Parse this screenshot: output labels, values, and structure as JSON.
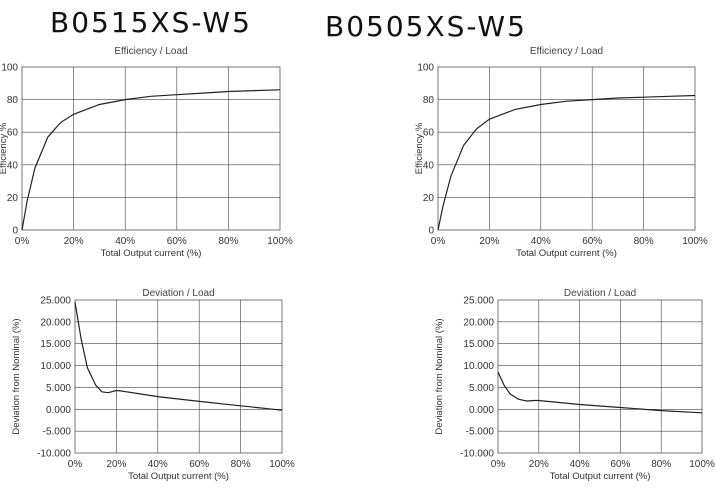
{
  "titles": [
    "B0515XS-W5",
    "B0505XS-W5"
  ],
  "chart_data": [
    {
      "panel": "B0515XS-W5",
      "type": "line",
      "title": "Efficiency / Load",
      "xlabel": "Total Output current (%)",
      "ylabel": "Efficiency %",
      "xlim": [
        0,
        100
      ],
      "ylim": [
        0,
        100
      ],
      "xticks": [
        "0%",
        "20%",
        "40%",
        "60%",
        "80%",
        "100%"
      ],
      "yticks": [
        "0",
        "20",
        "40",
        "60",
        "80",
        "100"
      ],
      "grid": true,
      "series": [
        {
          "x": [
            0,
            2,
            5,
            10,
            15,
            20,
            30,
            40,
            50,
            60,
            70,
            80,
            90,
            100
          ],
          "y": [
            0,
            18,
            38,
            57,
            66,
            71,
            77,
            80,
            82,
            83,
            84,
            85,
            85.5,
            86
          ]
        }
      ]
    },
    {
      "panel": "B0505XS-W5",
      "type": "line",
      "title": "Efficiency / Load",
      "xlabel": "Total Output current (%)",
      "ylabel": "Efficiency %",
      "xlim": [
        0,
        100
      ],
      "ylim": [
        0,
        100
      ],
      "xticks": [
        "0%",
        "20%",
        "40%",
        "60%",
        "80%",
        "100%"
      ],
      "yticks": [
        "0",
        "20",
        "40",
        "60",
        "80",
        "100"
      ],
      "grid": true,
      "series": [
        {
          "x": [
            0,
            2,
            5,
            10,
            15,
            20,
            30,
            40,
            50,
            60,
            70,
            80,
            90,
            100
          ],
          "y": [
            0,
            15,
            33,
            52,
            62,
            68,
            74,
            77,
            79,
            80,
            81,
            81.5,
            82,
            82.5
          ]
        }
      ]
    },
    {
      "panel": "B0515XS-W5",
      "type": "line",
      "title": "Deviation / Load",
      "xlabel": "Total Output current (%)",
      "ylabel": "Deviation from Nominal (%)",
      "xlim": [
        0,
        100
      ],
      "ylim": [
        -10,
        25
      ],
      "xticks": [
        "0%",
        "20%",
        "40%",
        "60%",
        "80%",
        "100%"
      ],
      "yticks": [
        "-10.000",
        "-5.000",
        "0.000",
        "5.000",
        "10.000",
        "15.000",
        "20.000",
        "25.000"
      ],
      "grid": true,
      "series": [
        {
          "x": [
            0,
            3,
            6,
            10,
            13,
            16,
            20,
            22,
            40,
            60,
            80,
            100
          ],
          "y": [
            24.5,
            16,
            9.5,
            5.5,
            4,
            3.8,
            4.3,
            4.2,
            2.9,
            1.8,
            0.8,
            -0.2
          ]
        }
      ]
    },
    {
      "panel": "B0505XS-W5",
      "type": "line",
      "title": "Deviation / Load",
      "xlabel": "Total Output current (%)",
      "ylabel": "Deviation from Nominal (%)",
      "xlim": [
        0,
        100
      ],
      "ylim": [
        -10,
        25
      ],
      "xticks": [
        "0%",
        "20%",
        "40%",
        "60%",
        "80%",
        "100%"
      ],
      "yticks": [
        "-10.000",
        "-5.000",
        "0.000",
        "5.000",
        "10.000",
        "15.000",
        "20.000",
        "25.000"
      ],
      "grid": true,
      "series": [
        {
          "x": [
            0,
            3,
            6,
            10,
            14,
            18,
            20,
            40,
            60,
            80,
            100
          ],
          "y": [
            8.5,
            5.5,
            3.5,
            2.3,
            1.9,
            2,
            2,
            1.1,
            0.4,
            -0.3,
            -0.8
          ]
        }
      ]
    }
  ]
}
